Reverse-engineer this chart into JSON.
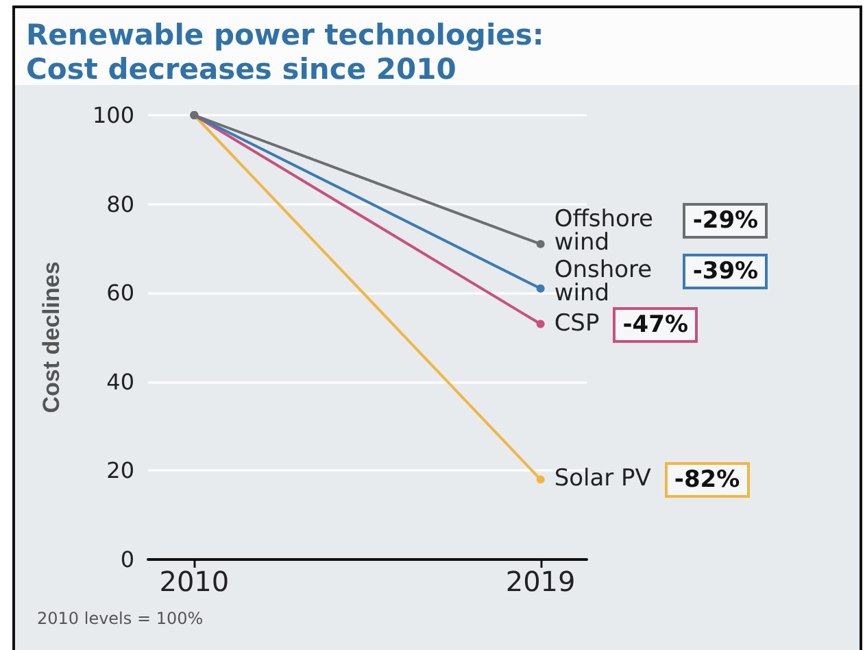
{
  "chart_data": {
    "type": "line",
    "title": "Renewable power technologies: Cost decreases since 2010",
    "ylabel": "Cost declines",
    "annotations": [
      "-29%",
      "-39%",
      "-47%",
      "-82%",
      "2010 levels = 100%"
    ],
    "x": [
      2010,
      2019
    ],
    "xlim": [
      2008.8,
      2020.2
    ],
    "xticks": [
      2010,
      2019
    ],
    "ylim": [
      0,
      100
    ],
    "yticks": [
      0,
      20,
      40,
      60,
      80,
      100
    ],
    "series": [
      {
        "name": "Offshore wind",
        "color": "#6d6e71",
        "values": [
          100,
          71
        ]
      },
      {
        "name": "Onshore wind",
        "color": "#3b7bb5",
        "values": [
          100,
          61
        ]
      },
      {
        "name": "CSP",
        "color": "#c8507e",
        "values": [
          100,
          53
        ]
      },
      {
        "name": "Solar PV",
        "color": "#f0b647",
        "values": [
          100,
          18
        ]
      }
    ],
    "grid": "y",
    "legend": "right",
    "marker": "circle",
    "line_style": "solid"
  }
}
